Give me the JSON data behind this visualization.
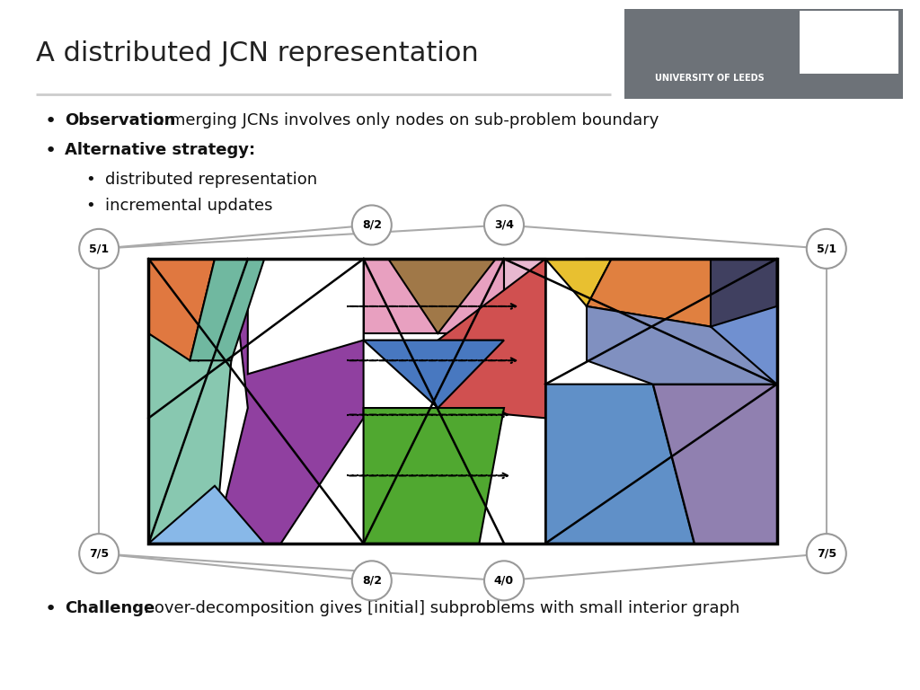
{
  "title": "A distributed JCN representation",
  "bg_color": "#ffffff",
  "bullet1_bold": "Observation",
  "bullet1_rest": ": merging JCNs involves only nodes on sub-problem boundary",
  "bullet2_bold": "Alternative strategy:",
  "bullet3": "distributed representation",
  "bullet4": "incremental updates",
  "challenge_bold": "Challenge",
  "challenge_rest": ": over-decomposition gives [initial] subproblems with small interior graph",
  "node_labels": {
    "TL": "5/1",
    "TM1": "8/2",
    "TM2": "3/4",
    "TR": "5/1",
    "BL": "7/5",
    "BM1": "8/2",
    "BM2": "4/0",
    "BR": "7/5"
  }
}
